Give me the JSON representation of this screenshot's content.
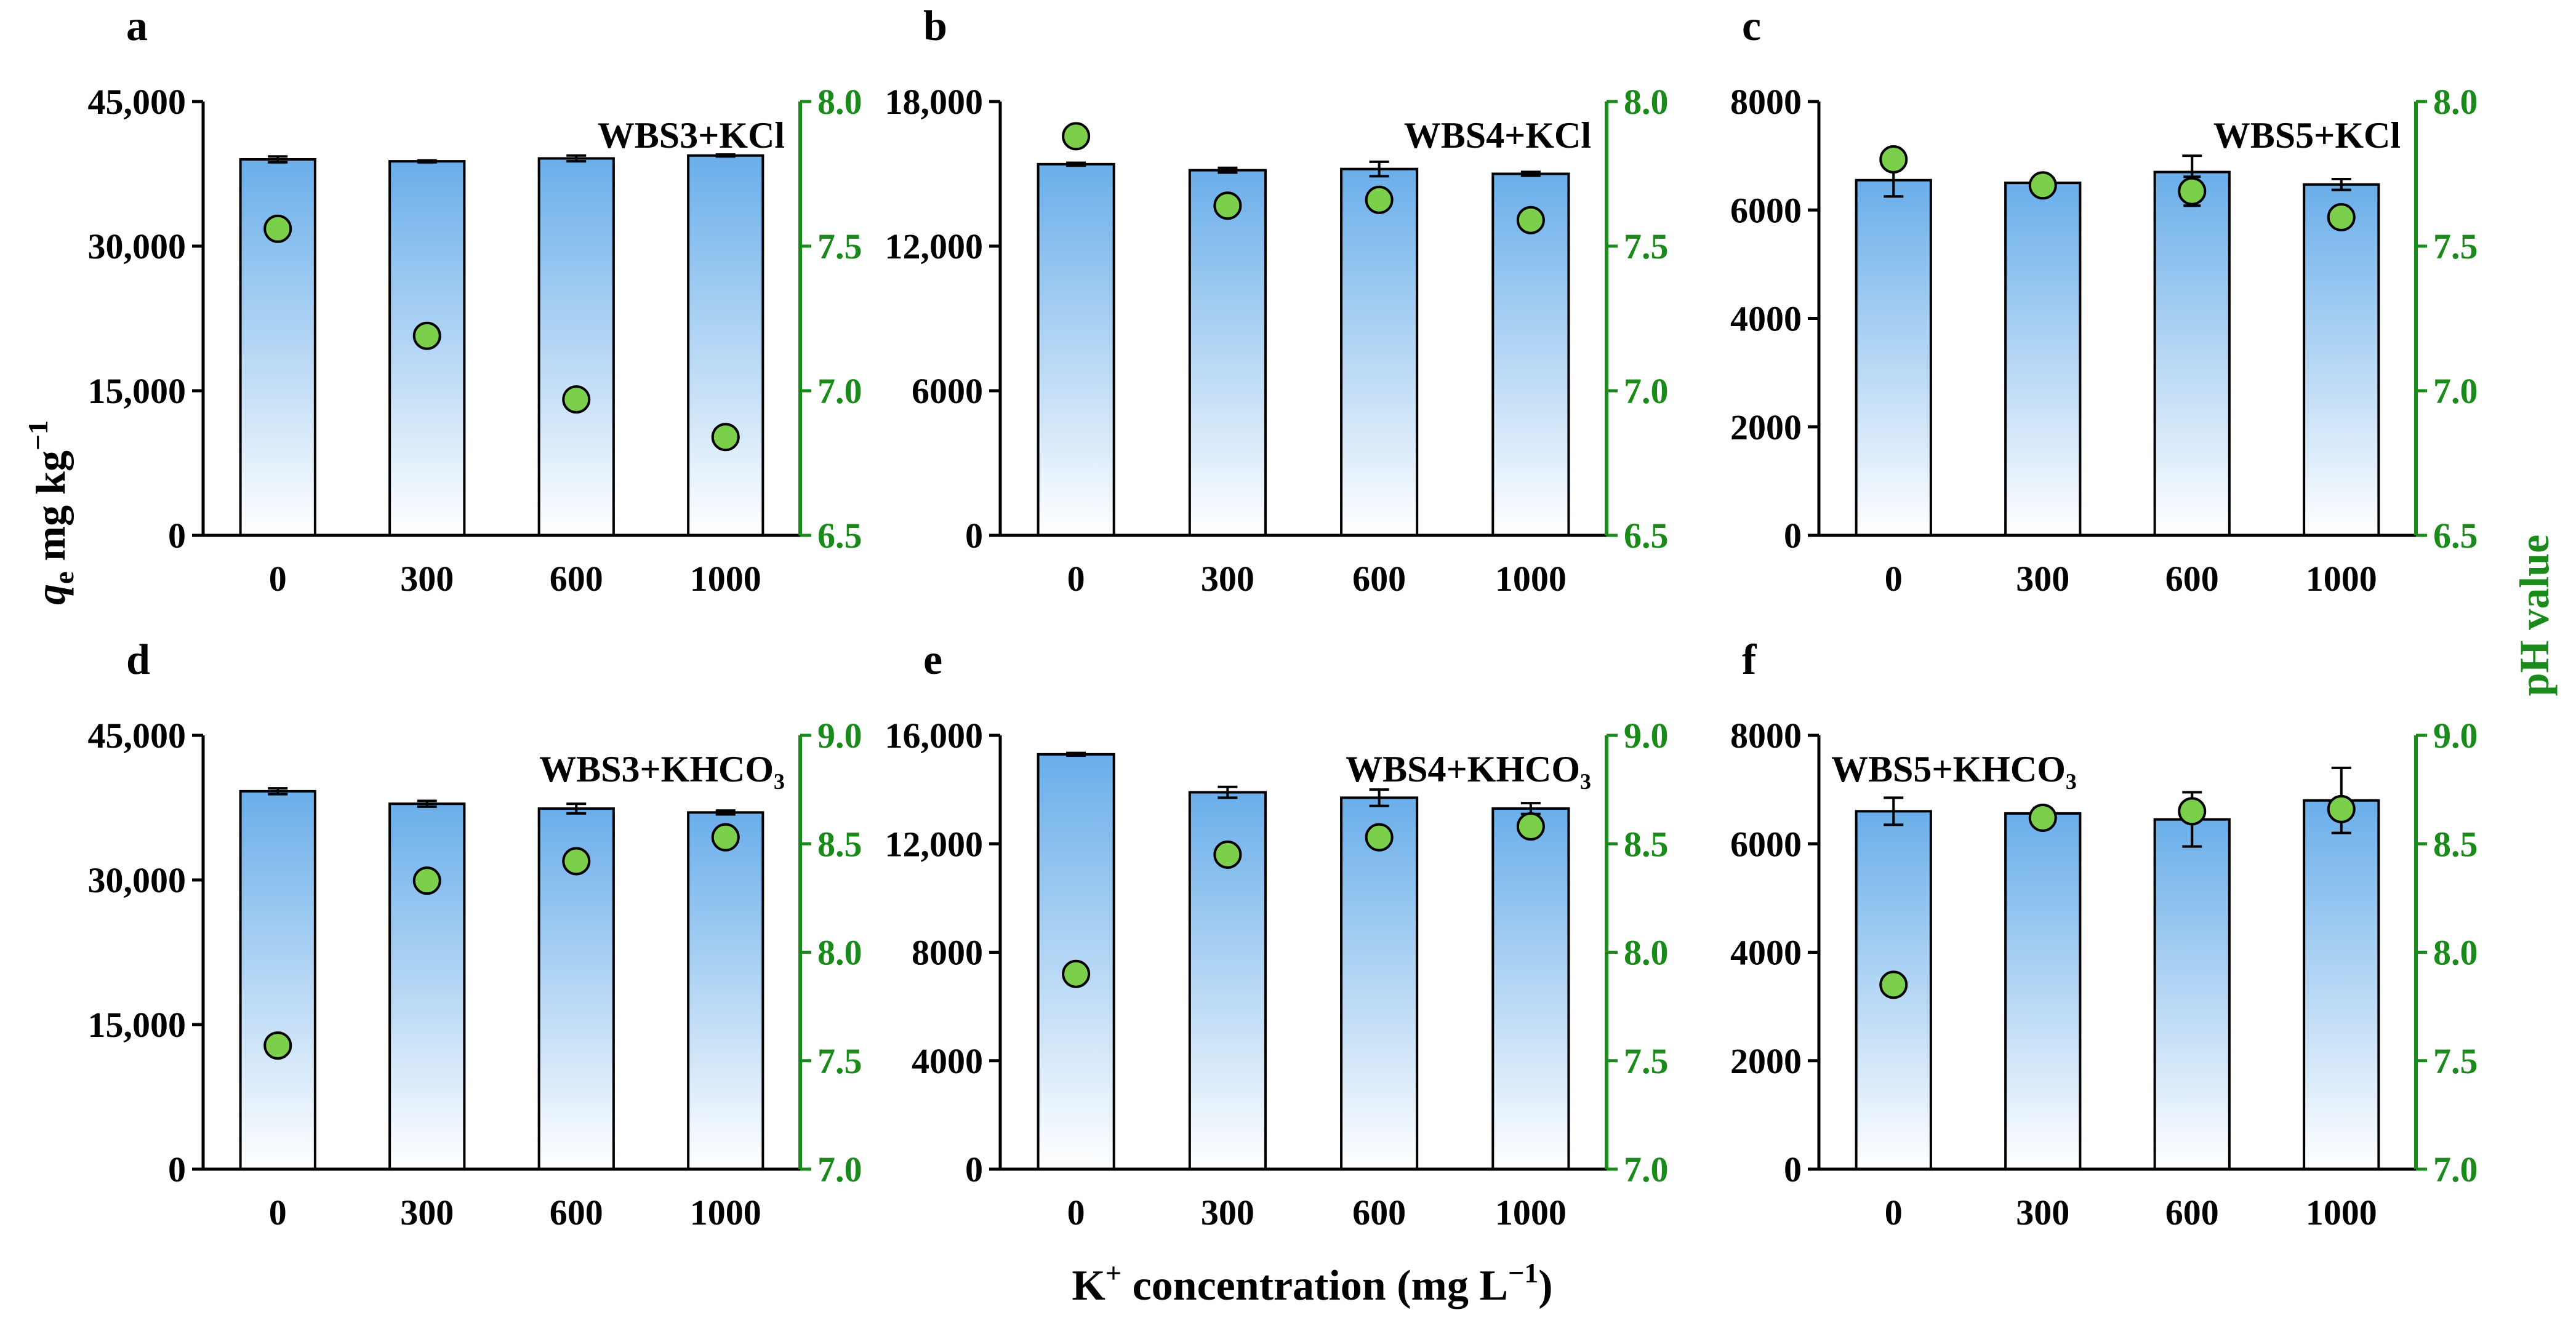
{
  "figure": {
    "y_left_label_main": "q",
    "y_left_label_sub": "e",
    "y_left_label_rest": " mg kg",
    "y_left_label_sup": "−1",
    "y_right_label": "pH value",
    "x_label_main": "K",
    "x_label_sup": "+",
    "x_label_rest": " concentration (mg L",
    "x_label_sup2": "−1",
    "x_label_end": ")"
  },
  "colors": {
    "bar_top": "#6aaeea",
    "bar_bottom": "#ffffff",
    "ph_point": "#7ccf4a",
    "ph_axis": "#1a8a1a",
    "axis": "#000000"
  },
  "chart_data": [
    {
      "panel": "a",
      "type": "bar",
      "title": "WBS3+KCl",
      "title_position": "top-right",
      "categories": [
        "0",
        "300",
        "600",
        "1000"
      ],
      "ylim": [
        0,
        45000
      ],
      "yticks": [
        0,
        15000,
        30000,
        45000
      ],
      "ytick_labels": [
        "0",
        "15,000",
        "30,000",
        "45,000"
      ],
      "values": [
        39000,
        38800,
        39100,
        39400
      ],
      "errors": [
        300,
        100,
        300,
        100
      ],
      "ph_ylim": [
        6.5,
        8.0
      ],
      "ph_ticks": [
        6.5,
        7.0,
        7.5,
        8.0
      ],
      "ph_tick_labels": [
        "6.5",
        "7.0",
        "7.5",
        "8.0"
      ],
      "ph_values": [
        7.56,
        7.19,
        6.97,
        6.84
      ],
      "ph_errors": [
        0,
        0,
        0,
        0
      ]
    },
    {
      "panel": "b",
      "type": "bar",
      "title": "WBS4+KCl",
      "title_position": "top-right",
      "categories": [
        "0",
        "300",
        "600",
        "1000"
      ],
      "ylim": [
        0,
        18000
      ],
      "yticks": [
        0,
        6000,
        12000,
        18000
      ],
      "ytick_labels": [
        "0",
        "6000",
        "12,000",
        "18,000"
      ],
      "values": [
        15400,
        15150,
        15200,
        15000
      ],
      "errors": [
        60,
        100,
        300,
        80
      ],
      "ph_ylim": [
        6.5,
        8.0
      ],
      "ph_ticks": [
        6.5,
        7.0,
        7.5,
        8.0
      ],
      "ph_tick_labels": [
        "6.5",
        "7.0",
        "7.5",
        "8.0"
      ],
      "ph_values": [
        7.88,
        7.64,
        7.66,
        7.59
      ],
      "ph_errors": [
        0,
        0,
        0,
        0
      ]
    },
    {
      "panel": "c",
      "type": "bar",
      "title": "WBS5+KCl",
      "title_position": "top-right",
      "categories": [
        "0",
        "300",
        "600",
        "1000"
      ],
      "ylim": [
        0,
        8000
      ],
      "yticks": [
        0,
        2000,
        4000,
        6000,
        8000
      ],
      "ytick_labels": [
        "0",
        "2000",
        "4000",
        "6000",
        "8000"
      ],
      "values": [
        6550,
        6500,
        6700,
        6470
      ],
      "errors": [
        300,
        100,
        300,
        100
      ],
      "ph_ylim": [
        6.5,
        8.0
      ],
      "ph_ticks": [
        6.5,
        7.0,
        7.5,
        8.0
      ],
      "ph_tick_labels": [
        "6.5",
        "7.0",
        "7.5",
        "8.0"
      ],
      "ph_values": [
        7.8,
        7.71,
        7.69,
        7.6
      ],
      "ph_errors": [
        0.03,
        0.03,
        0.05,
        0.02
      ]
    },
    {
      "panel": "d",
      "type": "bar",
      "title": "WBS3+KHCO₃",
      "title_position": "top-right",
      "categories": [
        "0",
        "300",
        "600",
        "1000"
      ],
      "ylim": [
        0,
        45000
      ],
      "yticks": [
        0,
        15000,
        30000,
        45000
      ],
      "ytick_labels": [
        "0",
        "15,000",
        "30,000",
        "45,000"
      ],
      "values": [
        39200,
        37900,
        37400,
        37000
      ],
      "errors": [
        300,
        300,
        500,
        200
      ],
      "ph_ylim": [
        7.0,
        9.0
      ],
      "ph_ticks": [
        7.0,
        7.5,
        8.0,
        8.5,
        9.0
      ],
      "ph_tick_labels": [
        "7.0",
        "7.5",
        "8.0",
        "8.5",
        "9.0"
      ],
      "ph_values": [
        7.57,
        8.33,
        8.42,
        8.53
      ],
      "ph_errors": [
        0,
        0,
        0,
        0
      ]
    },
    {
      "panel": "e",
      "type": "bar",
      "title": "WBS4+KHCO₃",
      "title_position": "top-right",
      "categories": [
        "0",
        "300",
        "600",
        "1000"
      ],
      "ylim": [
        0,
        16000
      ],
      "yticks": [
        0,
        4000,
        8000,
        12000,
        16000
      ],
      "ytick_labels": [
        "0",
        "4000",
        "8000",
        "12,000",
        "16,000"
      ],
      "values": [
        15300,
        13900,
        13700,
        13300
      ],
      "errors": [
        50,
        200,
        300,
        200
      ],
      "ph_ylim": [
        7.0,
        9.0
      ],
      "ph_ticks": [
        7.0,
        7.5,
        8.0,
        8.5,
        9.0
      ],
      "ph_tick_labels": [
        "7.0",
        "7.5",
        "8.0",
        "8.5",
        "9.0"
      ],
      "ph_values": [
        7.9,
        8.45,
        8.53,
        8.58
      ],
      "ph_errors": [
        0,
        0,
        0,
        0
      ]
    },
    {
      "panel": "f",
      "type": "bar",
      "title": "WBS5+KHCO₃",
      "title_position": "top-left",
      "categories": [
        "0",
        "300",
        "600",
        "1000"
      ],
      "ylim": [
        0,
        8000
      ],
      "yticks": [
        0,
        2000,
        4000,
        6000,
        8000
      ],
      "ytick_labels": [
        "0",
        "2000",
        "4000",
        "6000",
        "8000"
      ],
      "values": [
        6600,
        6560,
        6450,
        6800
      ],
      "errors": [
        250,
        100,
        500,
        600
      ],
      "ph_ylim": [
        7.0,
        9.0
      ],
      "ph_ticks": [
        7.0,
        7.5,
        8.0,
        8.5,
        9.0
      ],
      "ph_tick_labels": [
        "7.0",
        "7.5",
        "8.0",
        "8.5",
        "9.0"
      ],
      "ph_values": [
        7.85,
        8.62,
        8.65,
        8.66
      ],
      "ph_errors": [
        0,
        0,
        0,
        0
      ]
    }
  ]
}
